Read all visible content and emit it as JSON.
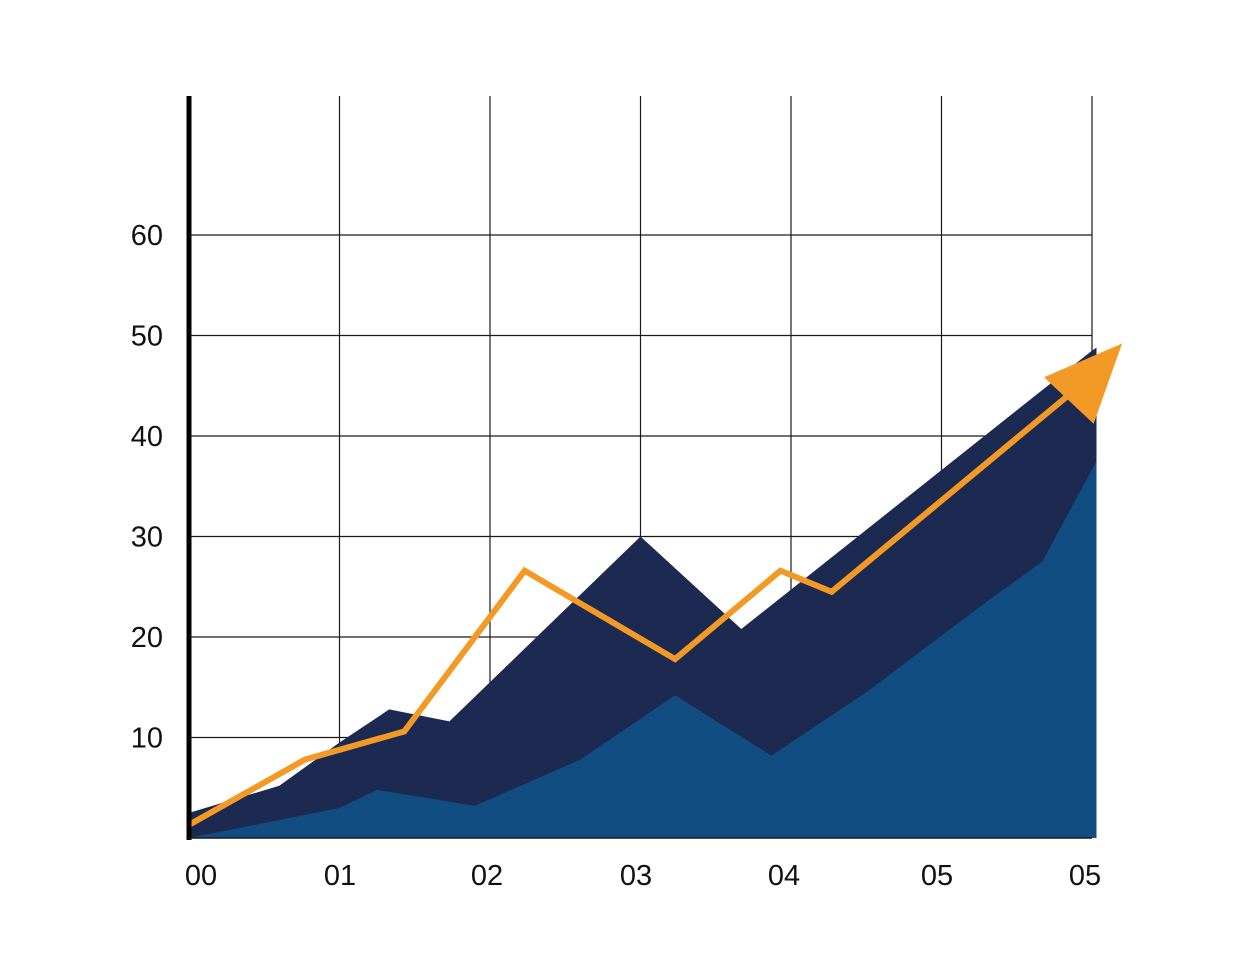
{
  "colors": {
    "background": "#ffffff",
    "grid": "#1a1a1a",
    "axis": "#000000",
    "dark_area": "#1c2951",
    "light_area": "#114d80",
    "trend_line": "#f39a26"
  },
  "chart_data": {
    "type": "area",
    "title": "",
    "xlabel": "",
    "ylabel": "",
    "x_tick_labels": [
      "00",
      "01",
      "02",
      "03",
      "04",
      "05",
      "05"
    ],
    "y_tick_labels": [
      "10",
      "20",
      "30",
      "40",
      "50",
      "60"
    ],
    "y_ticks": [
      10,
      20,
      30,
      40,
      50,
      60
    ],
    "xlim": [
      0,
      6
    ],
    "ylim": [
      0,
      74
    ],
    "grid": true,
    "legend": "none",
    "series": [
      {
        "type": "area",
        "color": "#1c2951",
        "x": [
          0,
          0.6,
          1,
          1.33,
          1.73,
          3,
          3.67,
          6,
          6.03,
          6.03
        ],
        "y": [
          2.5,
          5.2,
          9.5,
          12.8,
          11.6,
          30,
          20.8,
          48.5,
          48.8,
          0
        ]
      },
      {
        "type": "area",
        "color": "#114d80",
        "x": [
          0,
          1,
          1.25,
          1.9,
          2.6,
          3.23,
          3.87,
          4.5,
          5.3,
          5.67,
          6.03,
          6.03
        ],
        "y": [
          0,
          3,
          4.8,
          3.2,
          7.8,
          14.2,
          8.2,
          14.5,
          23.5,
          27.5,
          37.5,
          0
        ]
      },
      {
        "type": "line",
        "color": "#f39a26",
        "arrow_end": true,
        "x": [
          0,
          0.77,
          1.43,
          2.23,
          3.23,
          3.93,
          4.27,
          6,
          6.2
        ],
        "y": [
          1.3,
          7.8,
          10.6,
          26.6,
          17.8,
          26.6,
          24.5,
          46,
          49.2
        ]
      }
    ]
  }
}
